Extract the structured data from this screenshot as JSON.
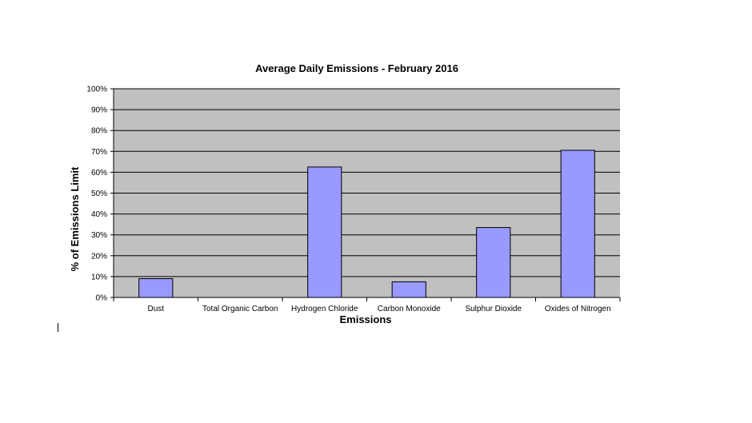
{
  "chart_data": {
    "type": "bar",
    "title": "Average Daily Emissions - February 2016",
    "xlabel": "Emissions",
    "ylabel": "% of Emissions Limit",
    "categories": [
      "Dust",
      "Total Organic Carbon",
      "Hydrogen Chloride",
      "Carbon Monoxide",
      "Sulphur Dioxide",
      "Oxides of Nitrogen"
    ],
    "values": [
      9,
      0,
      62.5,
      7.5,
      33.5,
      70.5
    ],
    "ylim": [
      0,
      100
    ],
    "yticks": [
      "0%",
      "10%",
      "20%",
      "30%",
      "40%",
      "50%",
      "60%",
      "70%",
      "80%",
      "90%",
      "100%"
    ],
    "grid": true,
    "legend": "none",
    "colors": {
      "bar_fill": "#9999ff",
      "bar_stroke": "#000000",
      "plot_background": "#c0c0c0",
      "gridline": "#000000"
    }
  }
}
